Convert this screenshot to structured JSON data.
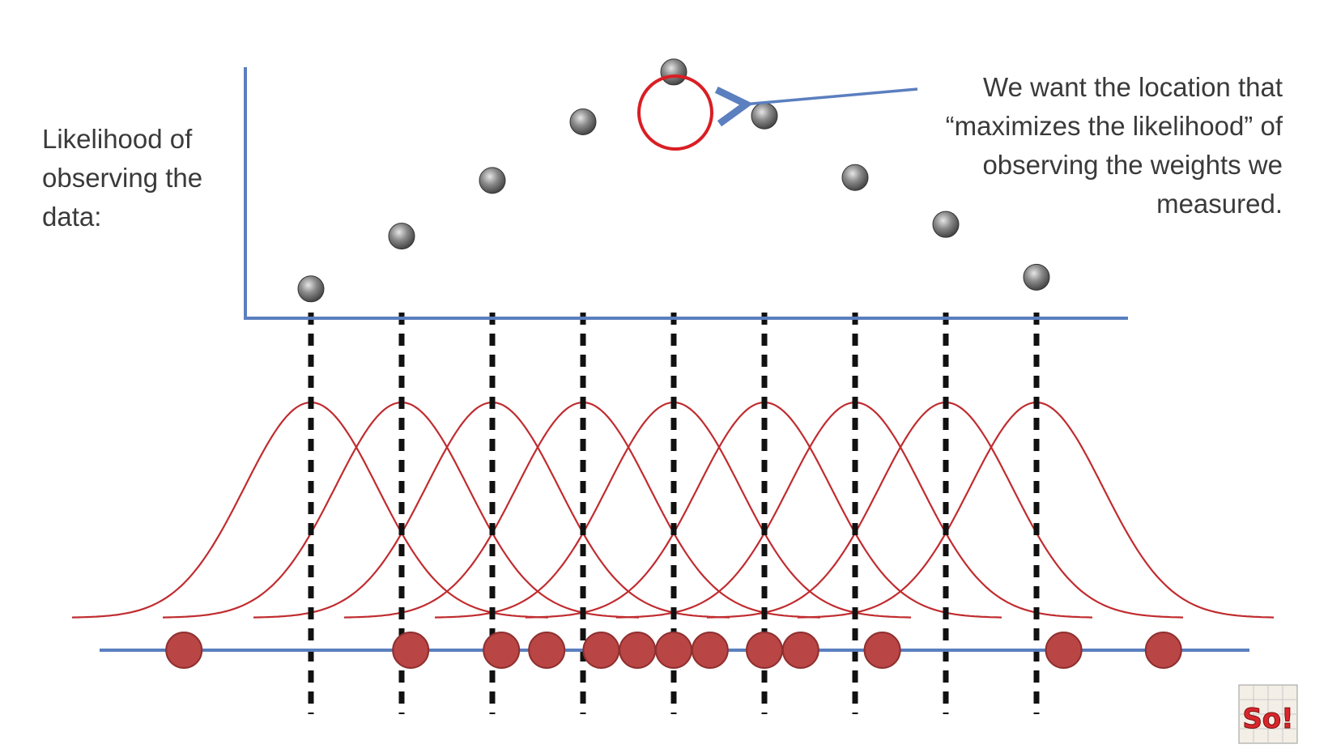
{
  "y_axis_label": [
    "Likelihood of",
    "observing the",
    "data:"
  ],
  "annotation": [
    "We want the location that",
    "“maximizes the likelihood” of",
    "observing the weights we",
    "measured."
  ],
  "logo": {
    "text": "So!"
  },
  "colors": {
    "axis": "#5b7fbf",
    "curve": "#c02c2f",
    "highlight_circle": "#d91e24",
    "point_fill": "#6e6e6e",
    "sample_fill": "#b94545",
    "sample_stroke": "#8f2f2f",
    "dashed_line": "#111111",
    "arrow": "#5b7fbf"
  },
  "chart_data": {
    "type": "scatter",
    "series": [
      {
        "values": [
          0.1,
          0.28,
          0.47,
          0.67,
          0.84,
          0.69,
          0.48,
          0.32,
          0.14
        ]
      }
    ],
    "candidate_locations": [
      1,
      2,
      3,
      4,
      5,
      6,
      7,
      8,
      9
    ],
    "highlighted_index": 4,
    "sample_points": [
      -0.4,
      2.1,
      3.1,
      3.6,
      4.2,
      4.6,
      5.0,
      5.4,
      6.0,
      6.4,
      7.3,
      9.3,
      10.4
    ],
    "ylim": [
      0,
      1
    ]
  }
}
